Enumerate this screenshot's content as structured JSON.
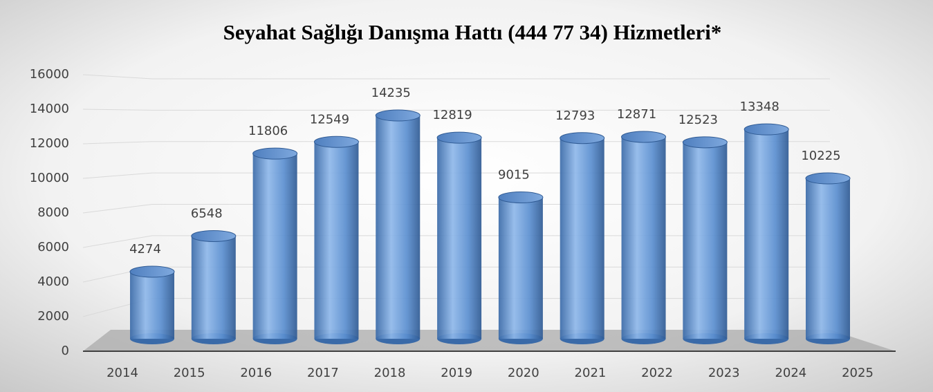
{
  "chart_data": {
    "type": "bar",
    "title": "Seyahat Sağlığı Danışma Hattı (444 77 34) Hizmetleri*",
    "categories": [
      "2014",
      "2015",
      "2016",
      "2017",
      "2018",
      "2019",
      "2020",
      "2021",
      "2022",
      "2023",
      "2024",
      "2025"
    ],
    "values": [
      4274,
      6548,
      11806,
      12549,
      14235,
      12819,
      9015,
      12793,
      12871,
      12523,
      13348,
      10225
    ],
    "color": "#4f81bd",
    "ylim": [
      0,
      16000
    ],
    "yticks": [
      0,
      2000,
      4000,
      6000,
      8000,
      10000,
      12000,
      14000,
      16000
    ],
    "grid": true
  }
}
